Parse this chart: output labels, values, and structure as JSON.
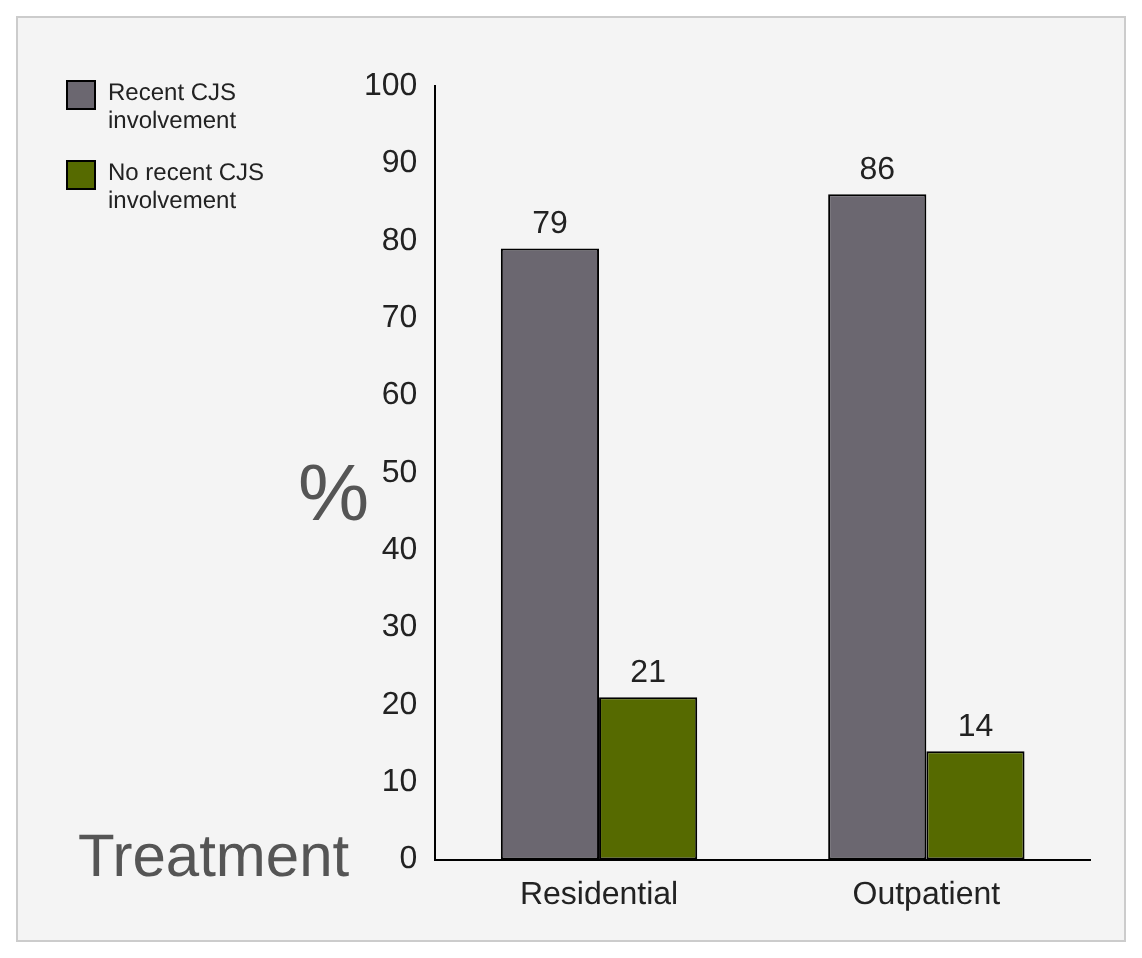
{
  "chart_data": {
    "type": "bar",
    "xlabel": "Treatment",
    "ylabel": "%",
    "categories": [
      "Residential",
      "Outpatient"
    ],
    "series": [
      {
        "name": "Recent CJS involvement",
        "color": "#6b6770",
        "values": [
          79,
          86
        ]
      },
      {
        "name": "No recent CJS involvement",
        "color": "#566a00",
        "values": [
          21,
          14
        ]
      }
    ],
    "ylim": [
      0,
      100
    ],
    "yticks": [
      0,
      10,
      20,
      30,
      40,
      50,
      60,
      70,
      80,
      90,
      100
    ],
    "grid": false,
    "legend": "top left",
    "data_labels": true
  }
}
